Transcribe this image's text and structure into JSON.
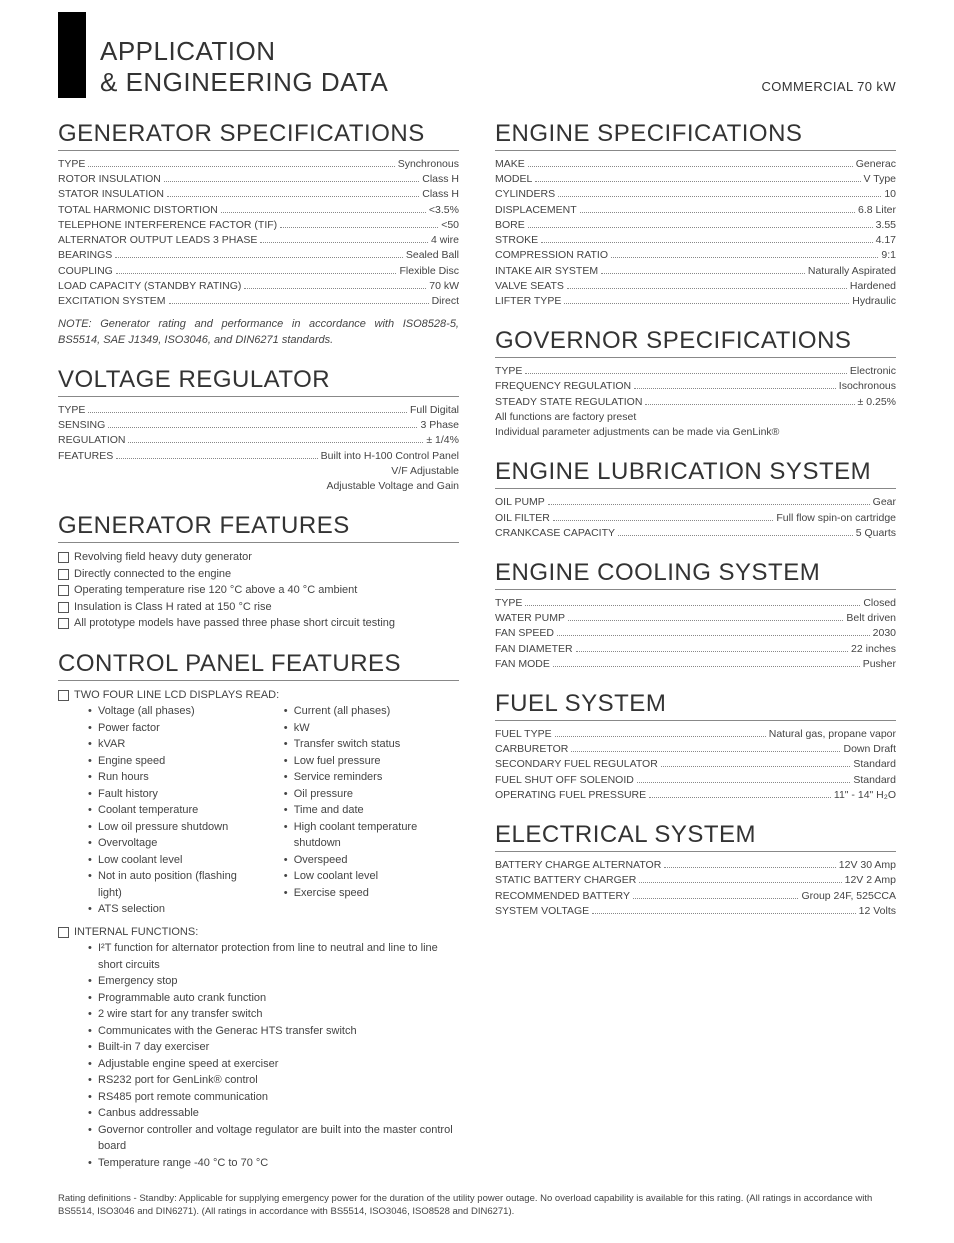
{
  "header": {
    "title1": "APPLICATION",
    "title2": "& ENGINEERING DATA",
    "product": "COMMERCIAL 70 kW"
  },
  "sections": {
    "genSpec": {
      "title": "GENERATOR SPECIFICATIONS",
      "rows": [
        {
          "l": "TYPE",
          "v": "Synchronous"
        },
        {
          "l": "ROTOR INSULATION",
          "v": "Class H"
        },
        {
          "l": "STATOR INSULATION",
          "v": "Class H"
        },
        {
          "l": "TOTAL HARMONIC DISTORTION",
          "v": "<3.5%"
        },
        {
          "l": "TELEPHONE INTERFERENCE FACTOR (TIF)",
          "v": "<50"
        },
        {
          "l": "ALTERNATOR OUTPUT LEADS 3 PHASE",
          "v": "4 wire"
        },
        {
          "l": "BEARINGS",
          "v": "Sealed Ball"
        },
        {
          "l": "COUPLING",
          "v": "Flexible Disc"
        },
        {
          "l": "LOAD CAPACITY (STANDBY RATING)",
          "v": "70 kW"
        },
        {
          "l": "EXCITATION SYSTEM",
          "v": "Direct"
        }
      ],
      "note": "NOTE: Generator rating and performance in accordance with ISO8528-5, BS5514, SAE J1349, ISO3046, and DIN6271 standards."
    },
    "voltReg": {
      "title": "VOLTAGE REGULATOR",
      "rows": [
        {
          "l": "TYPE",
          "v": "Full Digital"
        },
        {
          "l": "SENSING",
          "v": "3 Phase"
        },
        {
          "l": "REGULATION",
          "v": "± 1/4%"
        },
        {
          "l": "FEATURES",
          "v": "Built into H-100 Control Panel"
        }
      ],
      "extra": [
        "V/F Adjustable",
        "Adjustable Voltage and Gain"
      ]
    },
    "genFeat": {
      "title": "GENERATOR FEATURES",
      "items": [
        "Revolving field heavy duty generator",
        "Directly connected to the engine",
        "Operating temperature rise 120 °C above a 40 °C ambient",
        "Insulation is Class H rated at 150 °C rise",
        "All prototype models have passed three phase short circuit testing"
      ]
    },
    "ctrlPanel": {
      "title": "CONTROL PANEL FEATURES",
      "lcdHeading": "TWO FOUR LINE LCD DISPLAYS READ:",
      "lcdColA": [
        "Voltage (all phases)",
        "Power factor",
        "kVAR",
        "Engine speed",
        "Run hours",
        "Fault history",
        "Coolant temperature",
        "Low oil pressure shutdown",
        "Overvoltage",
        "Low coolant level",
        "Not in auto position (flashing light)",
        "ATS selection"
      ],
      "lcdColB": [
        "Current (all phases)",
        "kW",
        "Transfer switch status",
        "Low fuel pressure",
        "Service reminders",
        "Oil pressure",
        "Time and date",
        "High coolant temperature shutdown",
        "Overspeed",
        "Low coolant level",
        "Exercise speed"
      ],
      "intHeading": "INTERNAL FUNCTIONS:",
      "intItems": [
        "I²T function for alternator protection from line to neutral and line to line short circuits",
        "Emergency stop",
        "Programmable auto crank function",
        "2 wire start for any transfer switch",
        "Communicates with the Generac HTS transfer switch",
        "Built-in 7 day exerciser",
        "Adjustable engine speed at exerciser",
        "RS232 port for GenLink® control",
        "RS485 port remote communication",
        "Canbus addressable",
        "Governor controller and voltage regulator are built into the master control board",
        "Temperature range -40 °C to 70 °C"
      ]
    },
    "engSpec": {
      "title": "ENGINE SPECIFICATIONS",
      "rows": [
        {
          "l": "MAKE",
          "v": "Generac"
        },
        {
          "l": "MODEL",
          "v": "V Type"
        },
        {
          "l": "CYLINDERS",
          "v": "10"
        },
        {
          "l": "DISPLACEMENT",
          "v": "6.8 Liter"
        },
        {
          "l": "BORE",
          "v": "3.55"
        },
        {
          "l": "STROKE",
          "v": "4.17"
        },
        {
          "l": "COMPRESSION RATIO",
          "v": "9:1"
        },
        {
          "l": "INTAKE AIR SYSTEM",
          "v": "Naturally Aspirated"
        },
        {
          "l": "VALVE SEATS",
          "v": "Hardened"
        },
        {
          "l": "LIFTER TYPE",
          "v": "Hydraulic"
        }
      ]
    },
    "govSpec": {
      "title": "GOVERNOR SPECIFICATIONS",
      "rows": [
        {
          "l": "TYPE",
          "v": "Electronic"
        },
        {
          "l": "FREQUENCY REGULATION",
          "v": "Isochronous"
        },
        {
          "l": "STEADY STATE REGULATION",
          "v": "± 0.25%"
        }
      ],
      "notes": [
        "All functions are factory preset",
        "Individual parameter adjustments can be made via GenLink®"
      ]
    },
    "engLube": {
      "title": "ENGINE LUBRICATION SYSTEM",
      "rows": [
        {
          "l": "OIL PUMP",
          "v": "Gear"
        },
        {
          "l": "OIL FILTER",
          "v": "Full flow spin-on cartridge"
        },
        {
          "l": "CRANKCASE CAPACITY",
          "v": "5 Quarts"
        }
      ]
    },
    "engCool": {
      "title": "ENGINE COOLING SYSTEM",
      "rows": [
        {
          "l": "TYPE",
          "v": "Closed"
        },
        {
          "l": "WATER PUMP",
          "v": "Belt driven"
        },
        {
          "l": "FAN SPEED",
          "v": "2030"
        },
        {
          "l": "FAN DIAMETER",
          "v": "22 inches"
        },
        {
          "l": "FAN MODE",
          "v": "Pusher"
        }
      ]
    },
    "fuel": {
      "title": "FUEL SYSTEM",
      "rows": [
        {
          "l": "FUEL TYPE",
          "v": "Natural gas, propane vapor"
        },
        {
          "l": "CARBURETOR",
          "v": "Down Draft"
        },
        {
          "l": "SECONDARY FUEL REGULATOR",
          "v": "Standard"
        },
        {
          "l": "FUEL SHUT OFF SOLENOID",
          "v": "Standard"
        },
        {
          "l": "OPERATING FUEL PRESSURE",
          "v": "11\" - 14\" H₂O"
        }
      ]
    },
    "elec": {
      "title": "ELECTRICAL SYSTEM",
      "rows": [
        {
          "l": "BATTERY CHARGE ALTERNATOR",
          "v": "12V 30 Amp"
        },
        {
          "l": "STATIC BATTERY CHARGER",
          "v": "12V 2 Amp"
        },
        {
          "l": "RECOMMENDED BATTERY",
          "v": "Group 24F, 525CCA"
        },
        {
          "l": "SYSTEM VOLTAGE",
          "v": "12 Volts"
        }
      ]
    }
  },
  "footnote": "Rating definitions - Standby: Applicable for supplying emergency power for the duration of the utility power outage.  No overload capability is available for this rating.  (All ratings in accordance with BS5514, ISO3046 and DIN6271).  (All ratings in accordance with BS5514, ISO3046, ISO8528 and DIN6271)."
}
